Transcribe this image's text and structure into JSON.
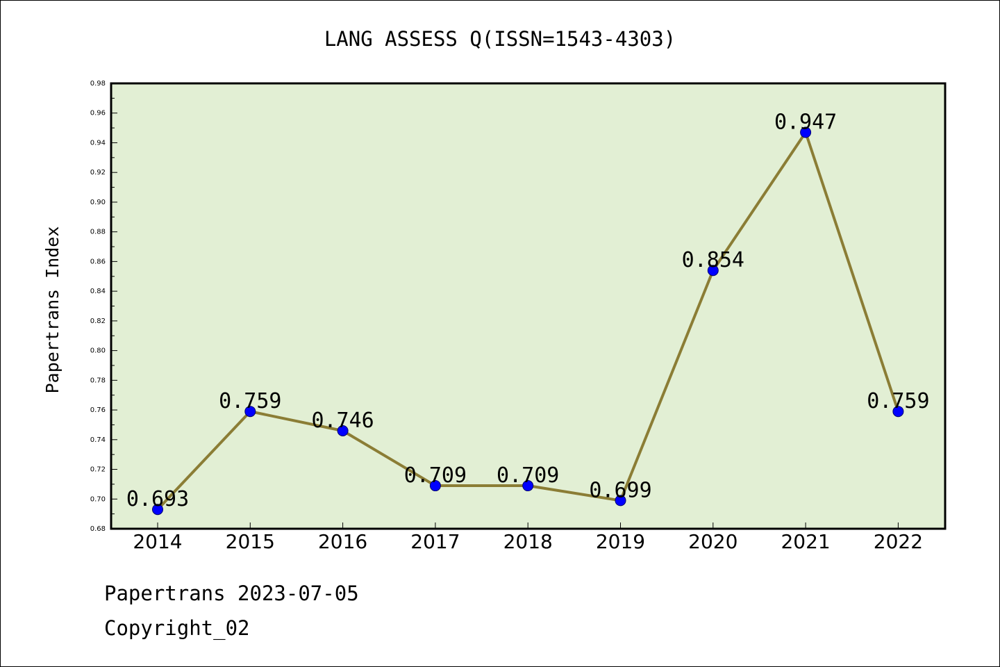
{
  "chart_data": {
    "type": "line",
    "title": "LANG ASSESS Q(ISSN=1543-4303)",
    "ylabel": "Papertrans Index",
    "xlabel": "",
    "categories": [
      "2014",
      "2015",
      "2016",
      "2017",
      "2018",
      "2019",
      "2020",
      "2021",
      "2022"
    ],
    "values": [
      0.693,
      0.759,
      0.746,
      0.709,
      0.709,
      0.699,
      0.854,
      0.947,
      0.759
    ],
    "data_labels": [
      "0.693",
      "0.759",
      "0.746",
      "0.709",
      "0.709",
      "0.699",
      "0.854",
      "0.947",
      "0.759"
    ],
    "ylim": [
      0.68,
      0.98
    ],
    "yticks": [
      "0.68",
      "0.70",
      "0.72",
      "0.74",
      "0.76",
      "0.78",
      "0.80",
      "0.82",
      "0.84",
      "0.86",
      "0.88",
      "0.90",
      "0.92",
      "0.94",
      "0.96",
      "0.98"
    ],
    "grid": false,
    "legend": "none",
    "colors": {
      "plot_background": "#e2efd4",
      "line": "#8b7d35",
      "marker": "#0000ff"
    }
  },
  "footer": {
    "line1": "Papertrans 2023-07-05",
    "line2": "Copyright_02"
  }
}
